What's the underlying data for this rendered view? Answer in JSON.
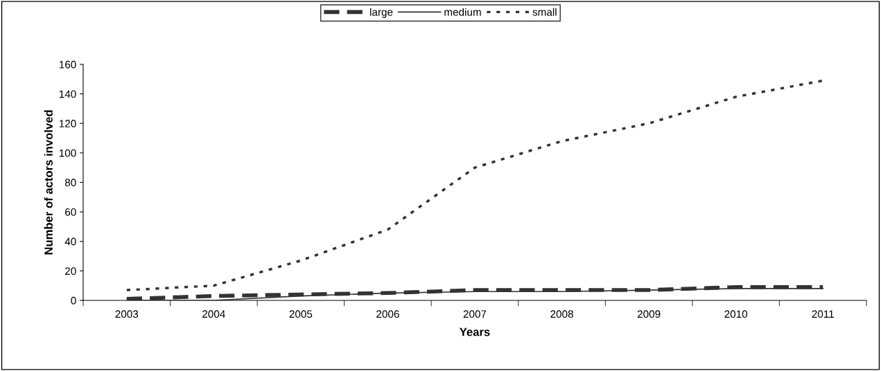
{
  "chart_data": {
    "type": "line",
    "xlabel": "Years",
    "ylabel": "Number of actors involved",
    "categories": [
      "2003",
      "2004",
      "2005",
      "2006",
      "2007",
      "2008",
      "2009",
      "2010",
      "2011"
    ],
    "series": [
      {
        "name": "large",
        "color": "#333333",
        "line_style": "dashed",
        "values": [
          1,
          3,
          4,
          5,
          7,
          7,
          7,
          9,
          9
        ]
      },
      {
        "name": "medium",
        "color": "#333333",
        "line_style": "solid",
        "values": [
          0,
          0,
          3,
          5,
          6,
          6,
          7,
          8,
          8
        ]
      },
      {
        "name": "small",
        "color": "#333333",
        "line_style": "dotted",
        "values": [
          7,
          10,
          27,
          48,
          90,
          108,
          120,
          138,
          149
        ]
      }
    ],
    "ylim": [
      0,
      160
    ],
    "yticks": [
      0,
      20,
      40,
      60,
      80,
      100,
      120,
      140,
      160
    ],
    "grid": false,
    "legend": "top",
    "marker": "none"
  }
}
